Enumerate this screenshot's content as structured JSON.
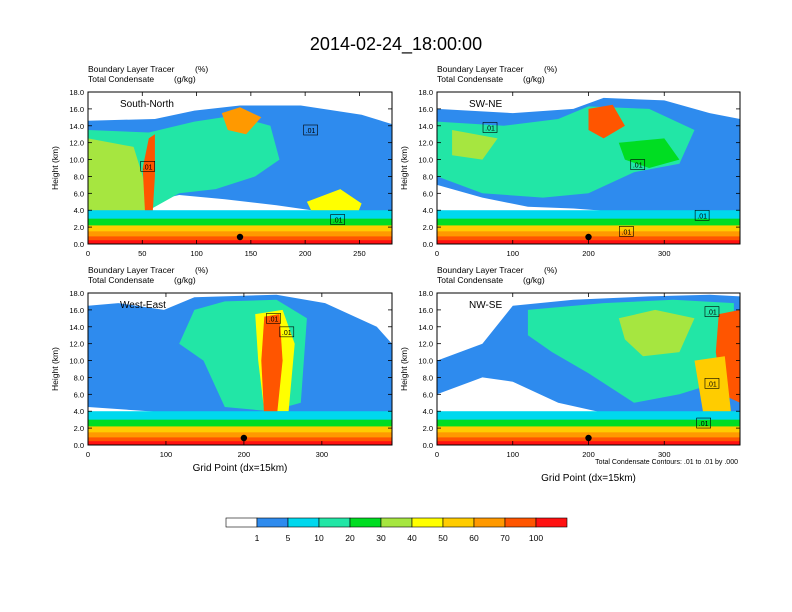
{
  "page_title": "2014-02-24_18:00:00",
  "panel_header": {
    "line1": "Boundary Layer Tracer",
    "unit1": "(%)",
    "line2": "Total Condensate",
    "unit2": "(g/kg)"
  },
  "chart_data": [
    {
      "type": "heatmap",
      "panel": "top-left",
      "label": "South-North",
      "ylabel": "Height (km)",
      "xlabel": "",
      "xlim": [
        0,
        280
      ],
      "ylim": [
        0,
        18
      ],
      "xticks": [
        0,
        50,
        100,
        150,
        200,
        250
      ],
      "yticks": [
        "0.0",
        "2.0",
        "4.0",
        "6.0",
        "8.0",
        "10.0",
        "12.0",
        "14.0",
        "16.0",
        "18.0"
      ],
      "contour_labels": [
        {
          "text": ".01",
          "x": 205,
          "y": 13.5
        },
        {
          "text": ".01",
          "x": 55,
          "y": 9.2
        },
        {
          "text": ".01",
          "x": 230,
          "y": 2.9
        }
      ],
      "marker_x": 140
    },
    {
      "type": "heatmap",
      "panel": "top-right",
      "label": "SW-NE",
      "ylabel": "Height (km)",
      "xlabel": "",
      "xlim": [
        0,
        400
      ],
      "ylim": [
        0,
        18
      ],
      "xticks": [
        0,
        100,
        200,
        300
      ],
      "yticks": [
        "0.0",
        "2.0",
        "4.0",
        "6.0",
        "8.0",
        "10.0",
        "12.0",
        "14.0",
        "16.0",
        "18.0"
      ],
      "contour_labels": [
        {
          "text": ".01",
          "x": 70,
          "y": 13.8
        },
        {
          "text": ".01",
          "x": 265,
          "y": 9.4
        },
        {
          "text": ".01",
          "x": 250,
          "y": 1.5
        },
        {
          "text": ".01",
          "x": 350,
          "y": 3.4
        }
      ],
      "marker_x": 200
    },
    {
      "type": "heatmap",
      "panel": "bottom-left",
      "label": "West-East",
      "ylabel": "Height (km)",
      "xlabel": "Grid Point (dx=15km)",
      "xlim": [
        0,
        390
      ],
      "ylim": [
        0,
        18
      ],
      "xticks": [
        0,
        100,
        200,
        300
      ],
      "yticks": [
        "0.0",
        "2.0",
        "4.0",
        "6.0",
        "8.0",
        "10.0",
        "12.0",
        "14.0",
        "16.0",
        "18.0"
      ],
      "contour_labels": [
        {
          "text": ".01",
          "x": 238,
          "y": 15.0
        },
        {
          "text": ".01",
          "x": 255,
          "y": 13.4
        }
      ],
      "marker_x": 200
    },
    {
      "type": "heatmap",
      "panel": "bottom-right",
      "label": "NW-SE",
      "ylabel": "Height (km)",
      "xlabel": "Grid Point (dx=15km)",
      "xlim": [
        0,
        400
      ],
      "ylim": [
        0,
        18
      ],
      "xticks": [
        0,
        100,
        200,
        300
      ],
      "yticks": [
        "0.0",
        "2.0",
        "4.0",
        "6.0",
        "8.0",
        "10.0",
        "12.0",
        "14.0",
        "16.0",
        "18.0"
      ],
      "contour_labels": [
        {
          "text": ".01",
          "x": 363,
          "y": 15.8
        },
        {
          "text": ".01",
          "x": 363,
          "y": 7.3
        },
        {
          "text": ".01",
          "x": 352,
          "y": 2.6
        }
      ],
      "marker_x": 200,
      "footnote": "Total Condensate Contours: .01 to .01 by .000"
    }
  ],
  "colorbar": {
    "colors": [
      "#ffffff",
      "#2e8bee",
      "#00d8ee",
      "#22e6a6",
      "#00dd22",
      "#a6e640",
      "#ffff00",
      "#ffcc00",
      "#ff9900",
      "#ff5500",
      "#ff1111"
    ],
    "labels": [
      "1",
      "5",
      "10",
      "20",
      "30",
      "40",
      "50",
      "60",
      "70",
      "100"
    ]
  }
}
